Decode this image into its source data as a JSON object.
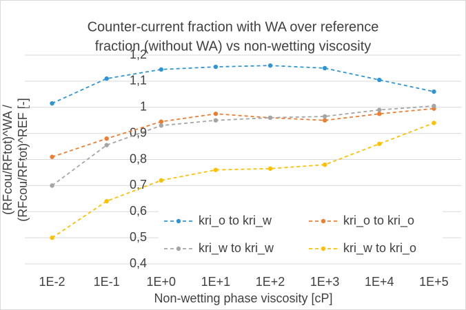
{
  "chart_data": {
    "type": "line",
    "title": [
      "Counter-current fraction with WA over reference",
      "fraction (without WA) vs non-wetting viscosity"
    ],
    "y_label": [
      "(RFcou/RFtot)^WA /",
      "(RFcou/RFtot)^REF [-]"
    ],
    "x_label": "Non-wetting phase viscosity [cP]",
    "categories": [
      "1E-2",
      "1E-1",
      "1E+0",
      "1E+1",
      "1E+2",
      "1E+3",
      "1E+4",
      "1E+5"
    ],
    "series": [
      {
        "name": "kri_o to kri_w",
        "color": "#2e95d3",
        "values": [
          1.015,
          1.11,
          1.145,
          1.155,
          1.16,
          1.15,
          1.105,
          1.06
        ]
      },
      {
        "name": "kri_o to kri_o",
        "color": "#ed7d31",
        "values": [
          0.81,
          0.88,
          0.945,
          0.975,
          0.96,
          0.95,
          0.975,
          0.995
        ]
      },
      {
        "name": "kri_w to kri_w",
        "color": "#a5a5a5",
        "values": [
          0.7,
          0.855,
          0.93,
          0.95,
          0.96,
          0.965,
          0.99,
          1.005
        ]
      },
      {
        "name": "kri_w to kri_o",
        "color": "#ffc000",
        "values": [
          0.5,
          0.64,
          0.72,
          0.76,
          0.765,
          0.78,
          0.86,
          0.94
        ]
      }
    ],
    "ylim": [
      0.4,
      1.2
    ],
    "yticks": [
      {
        "value": 0.4,
        "label": "0,4"
      },
      {
        "value": 0.5,
        "label": "0,5"
      },
      {
        "value": 0.6,
        "label": "0,6"
      },
      {
        "value": 0.7,
        "label": "0,7"
      },
      {
        "value": 0.8,
        "label": "0,8"
      },
      {
        "value": 0.9,
        "label": "0,9"
      },
      1,
      {
        "value": 1.1,
        "label": "1,1"
      },
      {
        "value": 1.2,
        "label": "1,2"
      }
    ],
    "grid": true
  }
}
